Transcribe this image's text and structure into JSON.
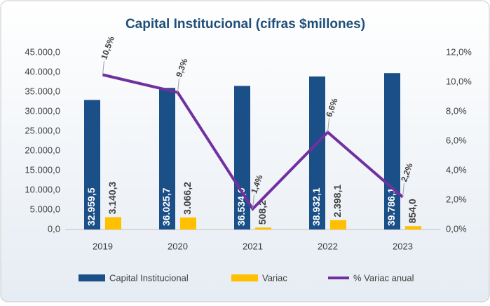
{
  "chart_data": {
    "type": "bar",
    "title": "Capital Institucional  (cifras $millones)",
    "categories": [
      "2019",
      "2020",
      "2021",
      "2022",
      "2023"
    ],
    "series": [
      {
        "name": "Capital Institucional",
        "color": "#1b4f87",
        "values": [
          32959.5,
          36025.7,
          36534.0,
          38932.1,
          39786.1
        ],
        "value_labels": [
          "32.959,5",
          "36.025,7",
          "36.534,0",
          "38.932,1",
          "39.786,1"
        ]
      },
      {
        "name": "Variac",
        "color": "#ffc000",
        "values": [
          3140.3,
          3066.2,
          508.2,
          2398.1,
          854.0
        ],
        "value_labels": [
          "3.140,3",
          "3.066,2",
          "508,2",
          "2.398,1",
          "854,0"
        ]
      },
      {
        "name": "% Variac anual",
        "type": "line",
        "axis": "y2",
        "color": "#7030a0",
        "values": [
          10.5,
          9.3,
          1.4,
          6.6,
          2.2
        ],
        "value_labels": [
          "10,5%",
          "9,3%",
          "1,4%",
          "6,6%",
          "2,2%"
        ]
      }
    ],
    "ylim": [
      0,
      45000
    ],
    "yticks": [
      {
        "value": 0,
        "label": "0,0"
      },
      {
        "value": 5000,
        "label": "5.000,0"
      },
      {
        "value": 10000,
        "label": "10.000,0"
      },
      {
        "value": 15000,
        "label": "15.000,0"
      },
      {
        "value": 20000,
        "label": "20.000,0"
      },
      {
        "value": 25000,
        "label": "25.000,0"
      },
      {
        "value": 30000,
        "label": "30.000,0"
      },
      {
        "value": 35000,
        "label": "35.000,0"
      },
      {
        "value": 40000,
        "label": "40.000,0"
      },
      {
        "value": 45000,
        "label": "45.000,0"
      }
    ],
    "y2lim": [
      0,
      12
    ],
    "y2ticks": [
      {
        "value": 0,
        "label": "0,0%"
      },
      {
        "value": 2,
        "label": "2,0%"
      },
      {
        "value": 4,
        "label": "4,0%"
      },
      {
        "value": 6,
        "label": "6,0%"
      },
      {
        "value": 8,
        "label": "8,0%"
      },
      {
        "value": 10,
        "label": "10,0%"
      },
      {
        "value": 12,
        "label": "12,0%"
      }
    ],
    "legend": "bottom"
  }
}
